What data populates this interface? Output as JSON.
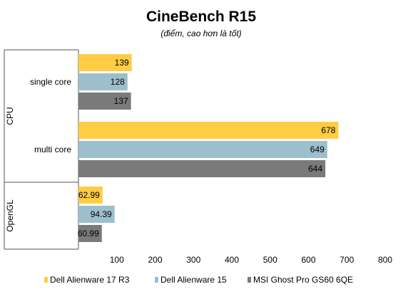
{
  "chart_data": {
    "type": "bar",
    "orientation": "horizontal",
    "title": "CineBench R15",
    "subtitle": "(điểm, cao hơn là tốt)",
    "groups": [
      {
        "name": "CPU",
        "categories": [
          "single core",
          "multi core"
        ]
      },
      {
        "name": "OpenGL",
        "categories": [
          ""
        ]
      }
    ],
    "series": [
      {
        "name": "Dell Alienware 17 R3",
        "color": "#FFCC44",
        "values": [
          139,
          678,
          62.99
        ]
      },
      {
        "name": "Dell Alienware 15",
        "color": "#9DBFCC",
        "values": [
          128,
          649,
          94.39
        ]
      },
      {
        "name": "MSI Ghost Pro GS60 6QE",
        "color": "#7A7A7A",
        "values": [
          137,
          644,
          60.99
        ]
      }
    ],
    "value_labels": [
      [
        "139",
        "678",
        "62.99"
      ],
      [
        "128",
        "649",
        "94.39"
      ],
      [
        "137",
        "644",
        "60.99"
      ]
    ],
    "xlim": [
      0,
      800
    ],
    "xticks": [
      "100",
      "200",
      "300",
      "400",
      "500",
      "600",
      "700",
      "800"
    ],
    "xtick_values": [
      100,
      200,
      300,
      400,
      500,
      600,
      700,
      800
    ],
    "grid": false,
    "legend_position": "bottom"
  }
}
